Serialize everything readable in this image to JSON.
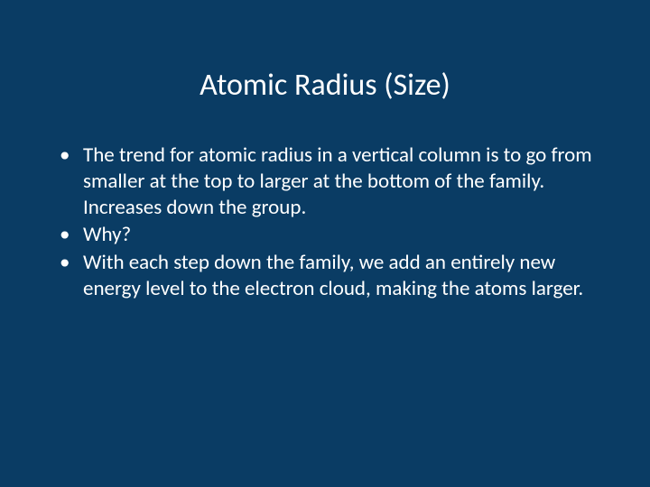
{
  "slide": {
    "background_color": "#0a3c64",
    "text_color": "#ffffff",
    "title": "Atomic Radius (Size)",
    "title_fontsize": 34,
    "title_color": "#ffffff",
    "body_fontsize": 23,
    "body_lineheight": 1.25,
    "bullets": [
      "The trend for atomic radius in a vertical column is to go from smaller at the top to larger at the bottom of the family. Increases down the group.",
      "Why?",
      "With each step down the family, we add an entirely new energy level to the electron cloud, making the atoms larger."
    ]
  }
}
